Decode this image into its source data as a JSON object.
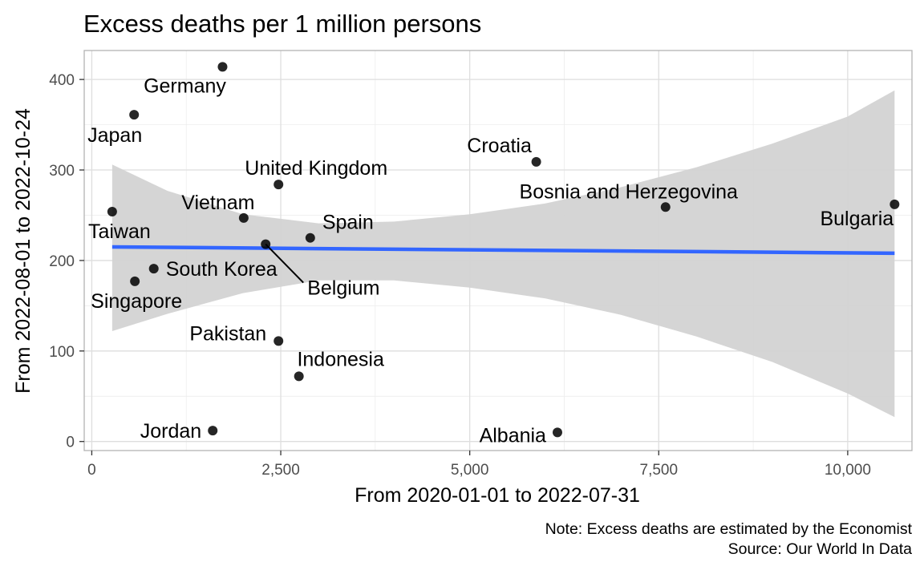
{
  "chart_data": {
    "type": "scatter",
    "title": "Excess deaths per 1 million persons",
    "xlabel": "From 2020-01-01 to 2022-07-31",
    "ylabel": "From 2022-08-01 to 2022-10-24",
    "xlim": [
      -100,
      10850
    ],
    "ylim": [
      -10,
      432
    ],
    "x_ticks": [
      0,
      2500,
      5000,
      7500,
      10000
    ],
    "x_tick_labels": [
      "0",
      "2,500",
      "5,000",
      "7,500",
      "10,000"
    ],
    "y_ticks": [
      0,
      100,
      200,
      300,
      400
    ],
    "y_tick_labels": [
      "0",
      "100",
      "200",
      "300",
      "400"
    ],
    "grid": true,
    "points": [
      {
        "label": "Germany",
        "x": 1730,
        "y": 414
      },
      {
        "label": "Japan",
        "x": 560,
        "y": 361
      },
      {
        "label": "Croatia",
        "x": 5880,
        "y": 309
      },
      {
        "label": "United Kingdom",
        "x": 2470,
        "y": 284
      },
      {
        "label": "Bulgaria",
        "x": 10620,
        "y": 262
      },
      {
        "label": "Bosnia and Herzegovina",
        "x": 7590,
        "y": 259
      },
      {
        "label": "Taiwan",
        "x": 270,
        "y": 254
      },
      {
        "label": "Vietnam",
        "x": 2010,
        "y": 247
      },
      {
        "label": "Spain",
        "x": 2890,
        "y": 225
      },
      {
        "label": "Belgium",
        "x": 2300,
        "y": 218
      },
      {
        "label": "South Korea",
        "x": 820,
        "y": 191
      },
      {
        "label": "Singapore",
        "x": 570,
        "y": 177
      },
      {
        "label": "Pakistan",
        "x": 2470,
        "y": 111
      },
      {
        "label": "Indonesia",
        "x": 2740,
        "y": 72
      },
      {
        "label": "Jordan",
        "x": 1600,
        "y": 12
      },
      {
        "label": "Albania",
        "x": 6160,
        "y": 10
      }
    ],
    "trend_line": {
      "color": "#3366ff",
      "x": [
        270,
        10620
      ],
      "y": [
        215,
        208
      ]
    },
    "confidence_band": {
      "color": "#d3d3d3",
      "x": [
        270,
        1000,
        2000,
        3000,
        4000,
        5000,
        6000,
        7000,
        8000,
        9000,
        10000,
        10620
      ],
      "upper": [
        306,
        277,
        251,
        241,
        243,
        251,
        263,
        281,
        303,
        329,
        359,
        388
      ],
      "lower": [
        122,
        141,
        164,
        178,
        178,
        170,
        158,
        140,
        116,
        88,
        53,
        27
      ]
    },
    "point_color": "#000000"
  },
  "footer": {
    "note": "Note: Excess deaths are estimated by the Economist",
    "source": "Source: Our World In Data"
  }
}
